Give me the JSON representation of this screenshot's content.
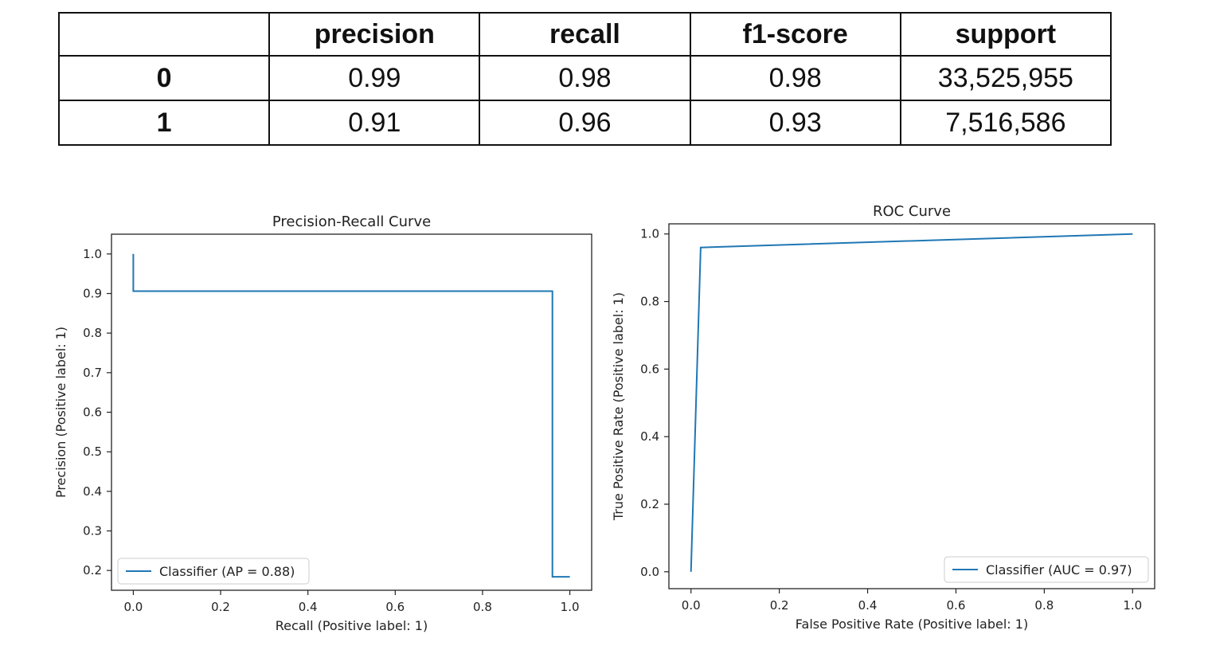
{
  "table": {
    "headers": [
      "",
      "precision",
      "recall",
      "f1-score",
      "support"
    ],
    "rows": [
      {
        "label": "0",
        "precision": "0.99",
        "recall": "0.98",
        "f1": "0.98",
        "support": "33,525,955"
      },
      {
        "label": "1",
        "precision": "0.91",
        "recall": "0.96",
        "f1": "0.93",
        "support": "7,516,586"
      }
    ]
  },
  "line_color": "#1f77b4",
  "chart_data": [
    {
      "type": "line",
      "title": "Precision-Recall Curve",
      "xlabel": "Recall (Positive label: 1)",
      "ylabel": "Precision (Positive label: 1)",
      "xlim": [
        -0.05,
        1.05
      ],
      "ylim": [
        0.15,
        1.05
      ],
      "xticks": [
        0.0,
        0.2,
        0.4,
        0.6,
        0.8,
        1.0
      ],
      "yticks": [
        0.2,
        0.3,
        0.4,
        0.5,
        0.6,
        0.7,
        0.8,
        0.9,
        1.0
      ],
      "grid": false,
      "legend": "lower-left",
      "series": [
        {
          "name": "Classifier (AP = 0.88)",
          "color": "#1f77b4",
          "x": [
            0.0,
            0.0,
            0.96,
            0.96,
            1.0
          ],
          "y": [
            1.0,
            0.906,
            0.906,
            0.184,
            0.184
          ]
        }
      ]
    },
    {
      "type": "line",
      "title": "ROC Curve",
      "xlabel": "False Positive Rate (Positive label: 1)",
      "ylabel": "True Positive Rate (Positive label: 1)",
      "xlim": [
        -0.05,
        1.05
      ],
      "ylim": [
        -0.05,
        1.03
      ],
      "xticks": [
        0.0,
        0.2,
        0.4,
        0.6,
        0.8,
        1.0
      ],
      "yticks": [
        0.0,
        0.2,
        0.4,
        0.6,
        0.8,
        1.0
      ],
      "grid": false,
      "legend": "lower-right",
      "series": [
        {
          "name": "Classifier (AUC = 0.97)",
          "color": "#1f77b4",
          "x": [
            0.0,
            0.022,
            1.0
          ],
          "y": [
            0.0,
            0.96,
            1.0
          ]
        }
      ]
    }
  ]
}
